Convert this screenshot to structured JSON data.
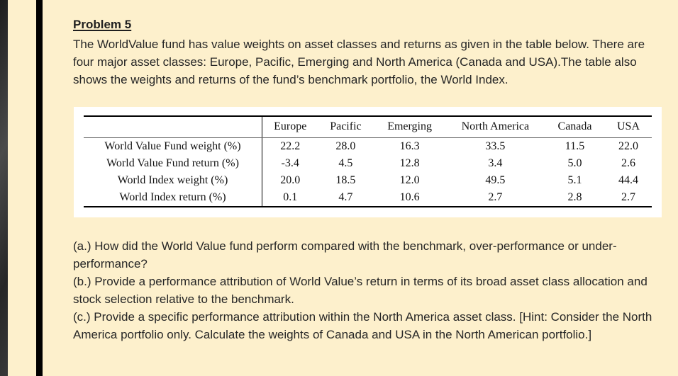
{
  "slide": {
    "title": "Problem 5",
    "intro": "The WorldValue fund has value weights on asset classes and returns as given in the table below. There are four major asset classes: Europe, Pacific, Emerging and North America (Canada and USA).The table also shows the weights and returns of the fund’s benchmark portfolio, the World Index.",
    "questions": [
      "(a.) How did the World Value fund perform compared with the benchmark, over-performance or under-performance?",
      "(b.) Provide a performance attribution of World Value’s return in terms of its broad asset class allocation and stock selection relative to the benchmark.",
      "(c.) Provide a specific performance attribution within the North America asset class. [Hint: Consider the North America portfolio only. Calculate the weights of Canada and USA in the North American portfolio.]"
    ]
  },
  "table": {
    "corner_label": "",
    "columns": [
      "Europe",
      "Pacific",
      "Emerging",
      "North America",
      "Canada",
      "USA"
    ],
    "rows": [
      {
        "label": "World Value Fund weight (%)",
        "values": [
          "22.2",
          "28.0",
          "16.3",
          "33.5",
          "11.5",
          "22.0"
        ]
      },
      {
        "label": "World Value Fund return (%)",
        "values": [
          "-3.4",
          "4.5",
          "12.8",
          "3.4",
          "5.0",
          "2.6"
        ]
      },
      {
        "label": "World Index weight (%)",
        "values": [
          "20.0",
          "18.5",
          "12.0",
          "49.5",
          "5.1",
          "44.4"
        ]
      },
      {
        "label": "World Index return (%)",
        "values": [
          "0.1",
          "4.7",
          "10.6",
          "2.7",
          "2.8",
          "2.7"
        ]
      }
    ]
  },
  "colors": {
    "background": "#fdf0cc",
    "accent_bar": "#000000",
    "left_gutter": "#333333",
    "table_background": "#ffffff",
    "text": "#262626",
    "rule_heavy": "#000000",
    "rule_light": "#666666"
  }
}
